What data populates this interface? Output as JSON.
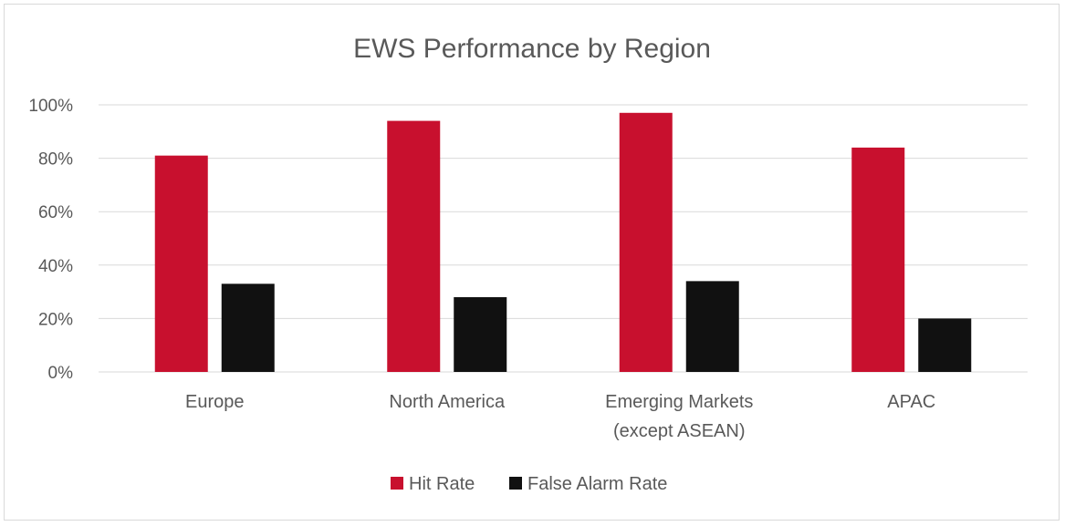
{
  "chart_data": {
    "type": "bar",
    "title": "EWS Performance by Region",
    "xlabel": "",
    "ylabel": "",
    "categories": [
      [
        "Europe"
      ],
      [
        "North America"
      ],
      [
        "Emerging Markets",
        "(except ASEAN)"
      ],
      [
        "APAC"
      ]
    ],
    "series": [
      {
        "name": "Hit Rate",
        "values": [
          81,
          94,
          97,
          84
        ],
        "color": "#c8102e"
      },
      {
        "name": "False Alarm Rate",
        "values": [
          33,
          28,
          34,
          20
        ],
        "color": "#111111"
      }
    ],
    "ylim": [
      0,
      100
    ],
    "yticks": [
      "0%",
      "20%",
      "40%",
      "60%",
      "80%",
      "100%"
    ],
    "grid": true,
    "legend_position": "bottom"
  }
}
